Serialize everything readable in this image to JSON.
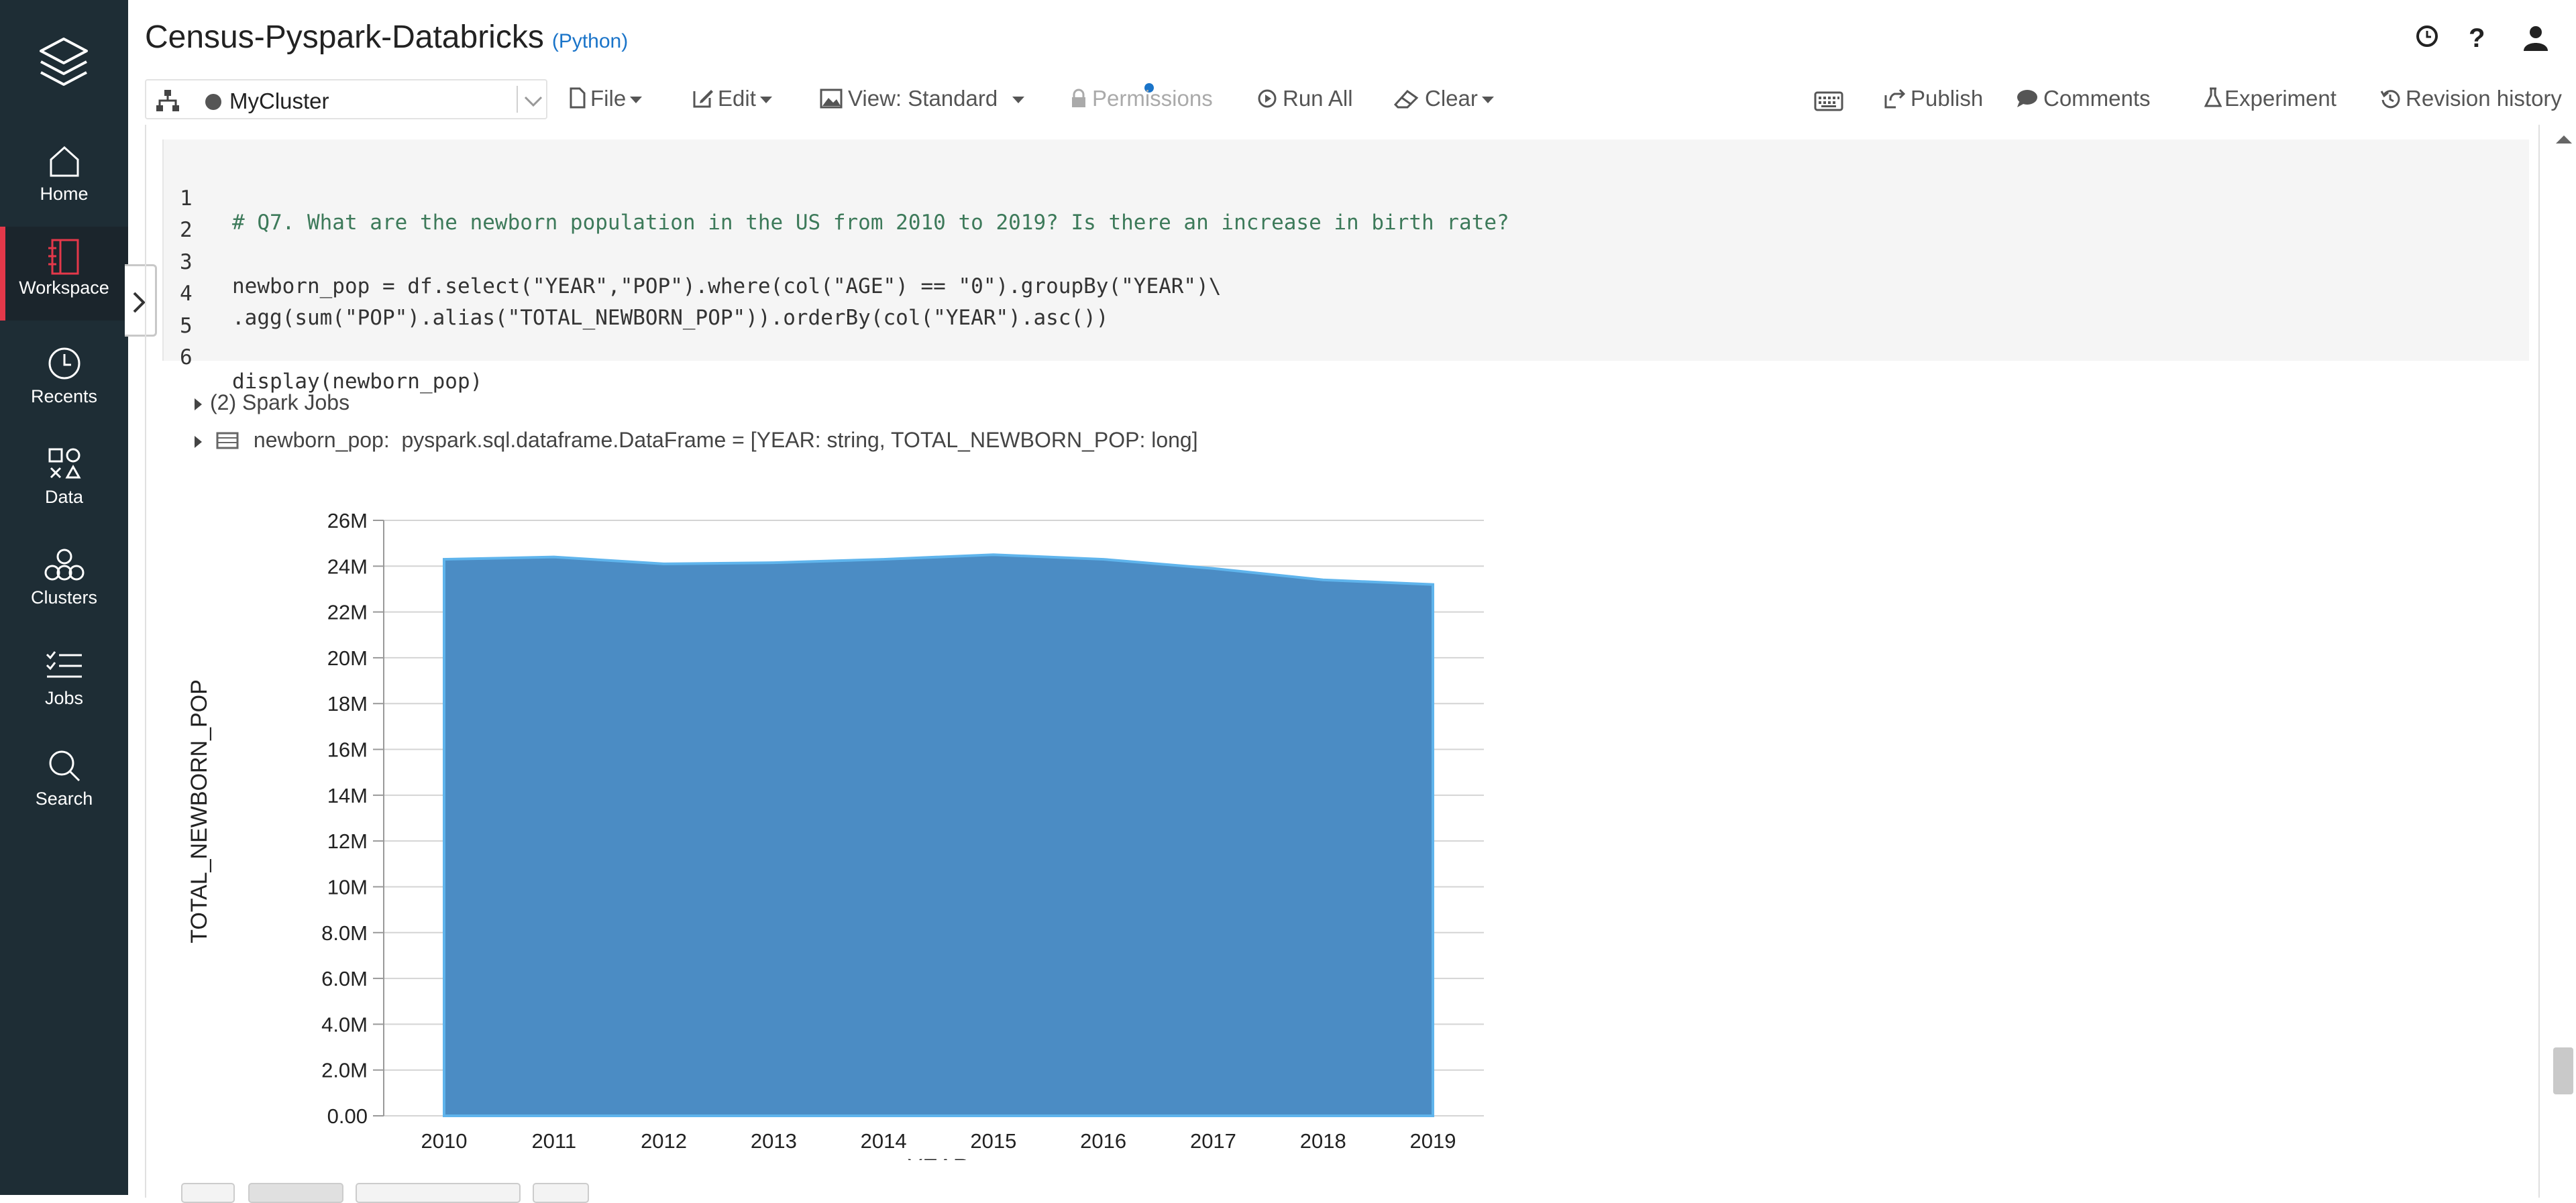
{
  "sidebar": {
    "items": [
      {
        "label": "Home",
        "icon": "home-icon"
      },
      {
        "label": "Workspace",
        "icon": "workspace-icon",
        "active": true
      },
      {
        "label": "Recents",
        "icon": "clock-icon"
      },
      {
        "label": "Data",
        "icon": "data-icon"
      },
      {
        "label": "Clusters",
        "icon": "clusters-icon"
      },
      {
        "label": "Jobs",
        "icon": "jobs-icon"
      },
      {
        "label": "Search",
        "icon": "search-icon"
      }
    ]
  },
  "header": {
    "title": "Census-Pyspark-Databricks",
    "language": "(Python)"
  },
  "toolbar": {
    "cluster": "MyCluster",
    "file": "File",
    "edit": "Edit",
    "view": "View: Standard",
    "permissions": "Permissions",
    "run_all": "Run All",
    "clear": "Clear",
    "publish": "Publish",
    "comments": "Comments",
    "experiment": "Experiment",
    "revision_history": "Revision history"
  },
  "cell": {
    "lines": [
      {
        "n": "1",
        "text": "# Q7. What are the newborn population in the US from 2010 to 2019? Is there an increase in birth rate?"
      },
      {
        "n": "2",
        "text": ""
      },
      {
        "n": "3",
        "text": "newborn_pop = df.select(\"YEAR\",\"POP\").where(col(\"AGE\") == \"0\").groupBy(\"YEAR\")\\"
      },
      {
        "n": "4",
        "text": ".agg(sum(\"POP\").alias(\"TOTAL_NEWBORN_POP\")).orderBy(col(\"YEAR\").asc())"
      },
      {
        "n": "5",
        "text": ""
      },
      {
        "n": "6",
        "text": "display(newborn_pop)"
      }
    ],
    "spark_jobs": "(2) Spark Jobs",
    "df_name": "newborn_pop:",
    "df_schema": "pyspark.sql.dataframe.DataFrame = [YEAR: string, TOTAL_NEWBORN_POP: long]"
  },
  "chart_data": {
    "type": "area",
    "x": [
      "2010",
      "2011",
      "2012",
      "2013",
      "2014",
      "2015",
      "2016",
      "2017",
      "2018",
      "2019"
    ],
    "series": [
      {
        "values": [
          24300000,
          24400000,
          24100000,
          24150000,
          24300000,
          24500000,
          24300000,
          23900000,
          23400000,
          23200000
        ]
      }
    ],
    "xlabel": "YEAR",
    "ylabel": "TOTAL_NEWBORN_POP",
    "ylim": [
      0,
      26000000
    ],
    "yticks": [
      "0.00",
      "2.0M",
      "4.0M",
      "6.0M",
      "8.0M",
      "10M",
      "12M",
      "14M",
      "16M",
      "18M",
      "20M",
      "22M",
      "24M",
      "26M"
    ],
    "color": "#4b8cc4",
    "grid": true
  }
}
